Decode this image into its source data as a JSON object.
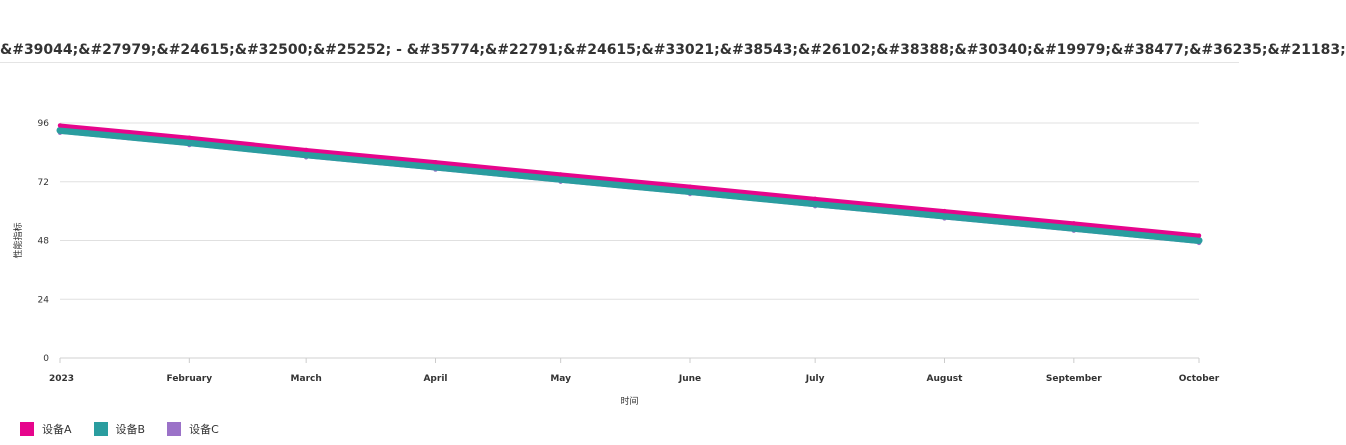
{
  "title": "&#39044;&#27979;&#24615;&#32500;&#25252; - &#35774;&#22791;&#24615;&#33021;&#38543;&#26102;&#38388;&#30340;&#19979;&#38477;&#36235;&#21183;",
  "chart_data": {
    "type": "line",
    "title": "&#39044;&#27979;&#24615;&#32500;&#25252; - &#35774;&#22791;&#24615;&#33021;&#38543;&#26102;&#38388;&#30340;&#19979;&#38477;&#36235;&#21183;",
    "xlabel": "时间",
    "ylabel": "性能指标",
    "categories": [
      "2023",
      "February",
      "March",
      "April",
      "May",
      "June",
      "July",
      "August",
      "September",
      "October"
    ],
    "x_dates": [
      "2023-01-01",
      "2023-02-01",
      "2023-03-01",
      "2023-04-01",
      "2023-05-01",
      "2023-06-01",
      "2023-07-01",
      "2023-08-01",
      "2023-09-01",
      "2023-10-01"
    ],
    "ylim": [
      0,
      96
    ],
    "yticks": [
      0,
      24,
      48,
      72,
      96
    ],
    "grid": true,
    "legend_position": "bottom-left",
    "series": [
      {
        "name": "设备A",
        "color": "#e6058c",
        "values": [
          95,
          90,
          85,
          80,
          75,
          70,
          65,
          60,
          55,
          50
        ]
      },
      {
        "name": "设备B",
        "color": "#2a9d9f",
        "values": [
          93,
          88,
          83,
          78,
          73,
          68,
          63,
          58,
          53,
          48
        ]
      },
      {
        "name": "设备C",
        "color": "#9b72c8",
        "values": [
          92,
          87,
          82,
          77,
          72,
          67,
          62,
          57,
          52,
          47
        ]
      }
    ]
  }
}
